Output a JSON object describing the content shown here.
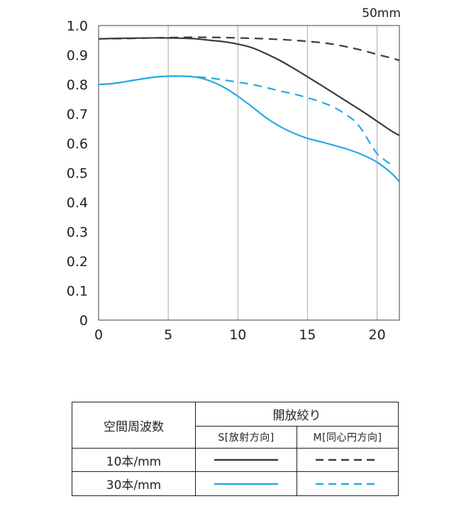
{
  "chart_data": {
    "type": "line",
    "focal_length_label": "50mm",
    "xlim": [
      0,
      21.6
    ],
    "ylim": [
      0,
      1.0
    ],
    "x_ticks": [
      "0",
      "5",
      "10",
      "15",
      "20"
    ],
    "y_ticks": [
      "0",
      "0.1",
      "0.2",
      "0.3",
      "0.4",
      "0.5",
      "0.6",
      "0.7",
      "0.8",
      "0.9",
      "1.0"
    ],
    "grid": true,
    "series": [
      {
        "color": "#3b3a3c",
        "style": "solid",
        "x": [
          0,
          2,
          4,
          6,
          7,
          8,
          9,
          10,
          11,
          12,
          13,
          14,
          15,
          16,
          17,
          18,
          19,
          20,
          21,
          21.6
        ],
        "y": [
          0.955,
          0.957,
          0.958,
          0.957,
          0.955,
          0.95,
          0.945,
          0.937,
          0.925,
          0.905,
          0.882,
          0.855,
          0.826,
          0.797,
          0.767,
          0.737,
          0.707,
          0.675,
          0.643,
          0.627
        ]
      },
      {
        "color": "#3b3a3c",
        "style": "dashed",
        "x": [
          0,
          2,
          4,
          6,
          8,
          10,
          12,
          14,
          16,
          17,
          18,
          19,
          20,
          21,
          21.6
        ],
        "y": [
          0.955,
          0.956,
          0.958,
          0.96,
          0.96,
          0.958,
          0.955,
          0.95,
          0.942,
          0.935,
          0.926,
          0.915,
          0.902,
          0.89,
          0.882
        ]
      },
      {
        "color": "#27aae1",
        "style": "solid",
        "x": [
          0,
          1,
          2,
          3,
          4,
          5,
          6,
          7,
          8,
          9,
          10,
          11,
          12,
          13,
          14,
          15,
          16,
          17,
          18,
          19,
          20,
          21,
          21.6
        ],
        "y": [
          0.8,
          0.803,
          0.81,
          0.818,
          0.825,
          0.828,
          0.828,
          0.825,
          0.812,
          0.79,
          0.76,
          0.725,
          0.688,
          0.658,
          0.635,
          0.617,
          0.605,
          0.592,
          0.578,
          0.56,
          0.536,
          0.5,
          0.47
        ]
      },
      {
        "color": "#27aae1",
        "style": "dashed",
        "x": [
          0,
          1,
          2,
          3,
          4,
          5,
          6,
          7,
          8,
          9,
          10,
          11,
          12,
          13,
          14,
          15,
          16,
          17,
          18,
          18.5,
          19,
          19.5,
          20,
          20.5,
          21.1
        ],
        "y": [
          0.8,
          0.803,
          0.81,
          0.818,
          0.825,
          0.828,
          0.828,
          0.826,
          0.822,
          0.815,
          0.808,
          0.8,
          0.79,
          0.778,
          0.768,
          0.755,
          0.74,
          0.72,
          0.69,
          0.67,
          0.64,
          0.6,
          0.565,
          0.545,
          0.525
        ]
      }
    ]
  },
  "legend": {
    "header_frequency": "空間周波数",
    "header_aperture": "開放絞り",
    "col_sagittal": "S[放射方向]",
    "col_meridional": "M[同心円方向]",
    "rows": [
      {
        "label": "10本/mm",
        "color": "#3b3a3c"
      },
      {
        "label": "30本/mm",
        "color": "#27aae1"
      }
    ]
  }
}
